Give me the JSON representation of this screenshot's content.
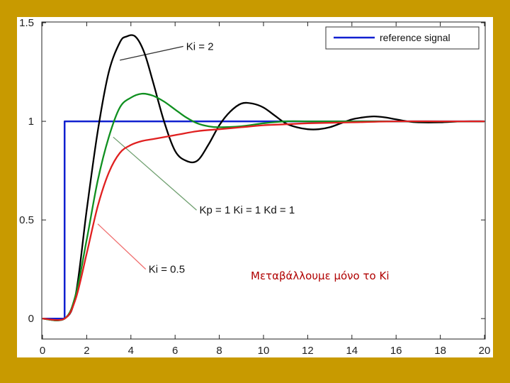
{
  "slide": {
    "background": "#c89a00",
    "caption": "Μεταβάλλουμε μόνο το Ki",
    "caption_color": "#b00000"
  },
  "chart_data": {
    "type": "line",
    "title": "",
    "xlabel": "",
    "ylabel": "",
    "xlim": [
      0,
      20
    ],
    "ylim": [
      -0.1,
      1.5
    ],
    "x_ticks": [
      0,
      2,
      4,
      6,
      8,
      10,
      12,
      14,
      16,
      18,
      20
    ],
    "y_ticks": [
      0,
      0.5,
      1,
      1.5
    ],
    "x_tick_labels": [
      "0",
      "2",
      "4",
      "6",
      "8",
      "10",
      "12",
      "14",
      "16",
      "18",
      "20"
    ],
    "y_tick_labels": [
      "0",
      "0.5",
      "1",
      "1.5"
    ],
    "grid": false,
    "legend": {
      "position": "top-right",
      "entries": [
        "reference signal"
      ]
    },
    "series": [
      {
        "name": "reference signal",
        "color": "#1020d0",
        "x": [
          0,
          1,
          1,
          20
        ],
        "y": [
          0,
          0,
          1,
          1
        ]
      },
      {
        "name": "Ki = 2",
        "color": "#000000",
        "x": [
          0,
          1,
          1.5,
          2,
          2.5,
          3,
          3.5,
          3.8,
          4.2,
          4.6,
          5,
          5.5,
          6,
          6.5,
          7,
          7.5,
          8,
          8.5,
          9,
          9.5,
          10,
          10.5,
          11,
          11.5,
          12,
          12.5,
          13,
          13.5,
          14,
          14.5,
          15,
          15.5,
          16,
          16.5,
          17,
          18,
          19,
          20
        ],
        "y": [
          0,
          0,
          0.12,
          0.55,
          0.95,
          1.25,
          1.4,
          1.43,
          1.43,
          1.35,
          1.2,
          1.0,
          0.85,
          0.8,
          0.8,
          0.88,
          0.98,
          1.05,
          1.09,
          1.09,
          1.07,
          1.03,
          0.99,
          0.97,
          0.96,
          0.96,
          0.97,
          0.99,
          1.01,
          1.02,
          1.025,
          1.02,
          1.01,
          1.0,
          0.995,
          0.995,
          1.0,
          1.0
        ]
      },
      {
        "name": "Kp = 1  Ki = 1  Kd = 1",
        "color": "#109020",
        "x": [
          0,
          1,
          1.5,
          2,
          2.5,
          3,
          3.5,
          4,
          4.5,
          5,
          5.5,
          6,
          6.5,
          7,
          7.5,
          8,
          9,
          10,
          11,
          12,
          13,
          14,
          16,
          18,
          20
        ],
        "y": [
          0,
          0,
          0.12,
          0.4,
          0.7,
          0.92,
          1.07,
          1.12,
          1.14,
          1.13,
          1.1,
          1.06,
          1.02,
          0.99,
          0.975,
          0.97,
          0.975,
          0.99,
          1.0,
          1.0,
          1.0,
          1.0,
          1.0,
          1.0,
          1.0
        ]
      },
      {
        "name": "Ki = 0.5",
        "color": "#e02020",
        "x": [
          0,
          1,
          1.5,
          2,
          2.5,
          3,
          3.5,
          4,
          4.5,
          5,
          6,
          7,
          8,
          9,
          10,
          11,
          12,
          14,
          16,
          18,
          20
        ],
        "y": [
          0,
          0,
          0.1,
          0.33,
          0.57,
          0.74,
          0.84,
          0.88,
          0.9,
          0.91,
          0.93,
          0.95,
          0.96,
          0.97,
          0.98,
          0.985,
          0.99,
          0.995,
          1.0,
          1.0,
          1.0
        ]
      }
    ],
    "annotations": [
      {
        "text": "Ki = 2",
        "anchor": [
          3.5,
          1.31
        ],
        "label_at": [
          6.5,
          1.38
        ],
        "arrow_color": "#333333"
      },
      {
        "text": "Kp = 1  Ki = 1  Kd = 1",
        "anchor": [
          3.2,
          0.92
        ],
        "label_at": [
          7.1,
          0.55
        ],
        "arrow_color": "#70a070"
      },
      {
        "text": "Ki = 0.5",
        "anchor": [
          2.5,
          0.48
        ],
        "label_at": [
          4.8,
          0.25
        ],
        "arrow_color": "#f07070"
      }
    ]
  }
}
